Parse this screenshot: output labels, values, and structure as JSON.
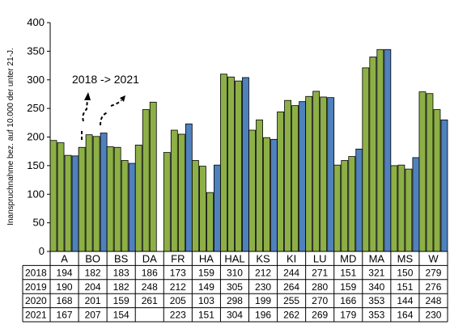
{
  "chart_data": {
    "type": "bar",
    "title": "",
    "xlabel": "",
    "ylabel": "Inanspruchnahme bez. auf 10.000 der unter 21-J.",
    "ylim": [
      0,
      400
    ],
    "yticks": [
      0,
      50,
      100,
      150,
      200,
      250,
      300,
      350,
      400
    ],
    "grid": false,
    "legend": "table-below",
    "categories": [
      "A",
      "BO",
      "BS",
      "DA",
      "FR",
      "HA",
      "HAL",
      "KS",
      "KI",
      "LU",
      "MD",
      "MA",
      "MS",
      "W"
    ],
    "series": [
      {
        "name": "2018",
        "color": "#8db046",
        "values": [
          194,
          182,
          183,
          186,
          173,
          159,
          310,
          212,
          244,
          271,
          151,
          321,
          150,
          279
        ]
      },
      {
        "name": "2019",
        "color": "#8db046",
        "values": [
          190,
          204,
          182,
          248,
          212,
          149,
          305,
          230,
          264,
          280,
          159,
          340,
          151,
          276
        ]
      },
      {
        "name": "2020",
        "color": "#8db046",
        "values": [
          168,
          201,
          159,
          261,
          205,
          103,
          298,
          199,
          255,
          270,
          166,
          353,
          144,
          248
        ]
      },
      {
        "name": "2021",
        "color": "#4f81bd",
        "values": [
          167,
          207,
          154,
          null,
          223,
          151,
          304,
          196,
          262,
          269,
          179,
          353,
          164,
          230
        ]
      }
    ],
    "annotation": "2018 -> 2021"
  }
}
